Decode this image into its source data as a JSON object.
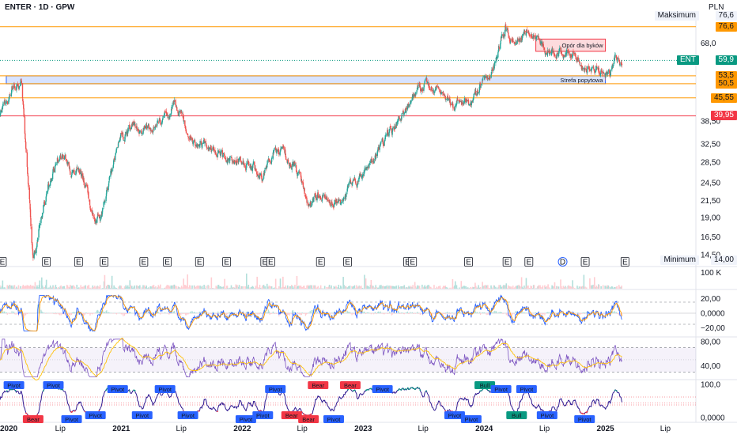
{
  "header": {
    "title": "ENTER · 1D · GPW",
    "currency": "PLN"
  },
  "colors": {
    "up": "#26a69a",
    "down": "#ef5350",
    "orange": "#ff9800",
    "red": "#f23645",
    "blue": "#2962ff",
    "purple": "#7e57c2",
    "green": "#089981",
    "teal": "#089981"
  },
  "chart_data": [
    {
      "type": "candlestick",
      "ticker": "ENT",
      "currency": "PLN",
      "y_scale": "log",
      "y_ticks": [
        "68,0",
        "38,50",
        "32,50",
        "28,50",
        "24,50",
        "21,50",
        "19,00",
        "16,50",
        "14,50"
      ],
      "ylim": [
        14.0,
        82.0
      ],
      "x_labels": [
        "2020",
        "Lip",
        "2021",
        "Lip",
        "2022",
        "Lip",
        "2023",
        "Lip",
        "2024",
        "Lip",
        "2025",
        "Lip"
      ],
      "x_label_dates": [
        "2020-01-01",
        "2020-07-01",
        "2021-01-01",
        "2021-07-01",
        "2022-01-01",
        "2022-07-01",
        "2023-01-01",
        "2023-07-01",
        "2024-01-01",
        "2024-07-01",
        "2025-01-01",
        "2025-07-01"
      ],
      "last_price": {
        "label": "ENT",
        "value": "59,9"
      },
      "maximum": {
        "label": "Maksimum",
        "value": "76,6"
      },
      "minimum": {
        "label": "Minimum",
        "value": "14,00"
      },
      "levels": [
        {
          "value": "76,6",
          "price": 76.6,
          "color": "#ff9800"
        },
        {
          "value": "53,5",
          "price": 53.5,
          "color": "#ff9800"
        },
        {
          "value": "50,5",
          "price": 50.5,
          "color": "#ff9800"
        },
        {
          "value": "45,55",
          "price": 45.55,
          "color": "#ff9800"
        },
        {
          "value": "39,95",
          "price": 39.95,
          "color": "#f23645"
        }
      ],
      "zones": [
        {
          "label": "Opór dla byków",
          "from": 64.0,
          "to": 70.0,
          "start": "2024-06-05",
          "end": "2025-01-01",
          "color": "#f23645"
        },
        {
          "label": "Strefa popytowa",
          "from": 50.5,
          "to": 53.5,
          "start": "2020-01-20",
          "end": "2025-01-01",
          "color": "#2962ff"
        }
      ],
      "path": [
        [
          "2020-01-01",
          40.0
        ],
        [
          "2020-02-10",
          49.0
        ],
        [
          "2020-03-05",
          51.5
        ],
        [
          "2020-03-20",
          30.0
        ],
        [
          "2020-04-10",
          14.0
        ],
        [
          "2020-05-10",
          20.0
        ],
        [
          "2020-06-10",
          26.5
        ],
        [
          "2020-07-05",
          31.0
        ],
        [
          "2020-08-05",
          26.0
        ],
        [
          "2020-09-01",
          27.0
        ],
        [
          "2020-10-01",
          20.5
        ],
        [
          "2020-11-01",
          19.0
        ],
        [
          "2020-11-25",
          25.0
        ],
        [
          "2021-01-01",
          34.0
        ],
        [
          "2021-02-10",
          37.0
        ],
        [
          "2021-03-15",
          36.0
        ],
        [
          "2021-05-01",
          39.0
        ],
        [
          "2021-06-10",
          44.0
        ],
        [
          "2021-07-01",
          40.0
        ],
        [
          "2021-08-01",
          34.0
        ],
        [
          "2021-10-01",
          31.5
        ],
        [
          "2021-12-01",
          29.0
        ],
        [
          "2022-01-20",
          29.0
        ],
        [
          "2022-03-01",
          25.5
        ],
        [
          "2022-04-10",
          31.0
        ],
        [
          "2022-05-10",
          30.0
        ],
        [
          "2022-06-10",
          28.0
        ],
        [
          "2022-07-15",
          21.0
        ],
        [
          "2022-08-20",
          22.5
        ],
        [
          "2022-09-20",
          22.0
        ],
        [
          "2022-10-25",
          21.0
        ],
        [
          "2022-11-20",
          23.5
        ],
        [
          "2022-12-15",
          24.5
        ],
        [
          "2023-02-01",
          28.5
        ],
        [
          "2023-03-10",
          34.0
        ],
        [
          "2023-04-20",
          38.0
        ],
        [
          "2023-05-20",
          44.0
        ],
        [
          "2023-06-20",
          49.0
        ],
        [
          "2023-07-25",
          50.0
        ],
        [
          "2023-09-01",
          46.0
        ],
        [
          "2023-10-01",
          42.0
        ],
        [
          "2023-10-20",
          46.0
        ],
        [
          "2023-11-20",
          42.0
        ],
        [
          "2023-12-20",
          50.0
        ],
        [
          "2024-01-20",
          54.0
        ],
        [
          "2024-02-15",
          68.0
        ],
        [
          "2024-03-05",
          76.6
        ],
        [
          "2024-03-25",
          70.0
        ],
        [
          "2024-04-25",
          71.0
        ],
        [
          "2024-05-15",
          74.0
        ],
        [
          "2024-06-25",
          68.0
        ],
        [
          "2024-07-25",
          64.0
        ],
        [
          "2024-09-01",
          63.0
        ],
        [
          "2024-10-01",
          62.0
        ],
        [
          "2024-11-01",
          58.0
        ],
        [
          "2024-12-01",
          56.0
        ],
        [
          "2024-12-20",
          53.0
        ],
        [
          "2025-01-15",
          55.0
        ],
        [
          "2025-02-01",
          60.0
        ],
        [
          "2025-02-20",
          59.9
        ]
      ],
      "earnings_markers": [
        "E",
        "E",
        "E",
        "E",
        "E",
        "E",
        "E",
        "E",
        "E",
        "E",
        "E",
        "E",
        "E",
        "E",
        "E",
        "E",
        "E",
        "D",
        "E",
        "E"
      ],
      "earnings_dates": [
        "2020-01-08",
        "2020-05-20",
        "2020-08-25",
        "2020-11-10",
        "2021-03-10",
        "2021-05-20",
        "2021-08-25",
        "2021-11-15",
        "2022-03-10",
        "2022-03-28",
        "2022-08-25",
        "2022-11-15",
        "2023-05-15",
        "2023-05-30",
        "2023-11-15",
        "2024-03-10",
        "2024-05-15",
        "2024-08-25",
        "2024-11-01",
        "2025-03-01"
      ]
    },
    {
      "type": "bar",
      "name": "volume",
      "y_ticks": [
        "100 K"
      ]
    },
    {
      "type": "line",
      "name": "oscillator",
      "y_ticks": [
        "20,00",
        "0,0000",
        "−20,00"
      ],
      "ylim": [
        -30,
        30
      ],
      "bands": [
        15,
        -15
      ],
      "series": [
        {
          "color": "#2962ff"
        },
        {
          "color": "#ff9800"
        }
      ]
    },
    {
      "type": "line",
      "name": "rsi",
      "y_ticks": [
        "80,00",
        "40,00"
      ],
      "ylim": [
        20,
        85
      ],
      "bands": [
        70,
        30
      ],
      "series": [
        {
          "color": "#7e57c2"
        },
        {
          "color": "#ffc107"
        }
      ]
    },
    {
      "type": "line",
      "name": "pivots",
      "y_ticks": [
        "100,0",
        "0,0000"
      ],
      "ylim": [
        -10,
        110
      ],
      "labels": [
        "Pivot",
        "Bear",
        "Pivot",
        "Pivot",
        "Pivot",
        "Pivot",
        "Pivot",
        "Pivot",
        "Pivot",
        "Pivot",
        "Pivot",
        "Pivot",
        "Bear",
        "Bear",
        "Bear",
        "Pivot",
        "Bear",
        "Pivot",
        "Pivot",
        "Pivot",
        "Bull",
        "Pivot",
        "Bull",
        "Pivot",
        "Pivot",
        "Pivot"
      ]
    }
  ]
}
